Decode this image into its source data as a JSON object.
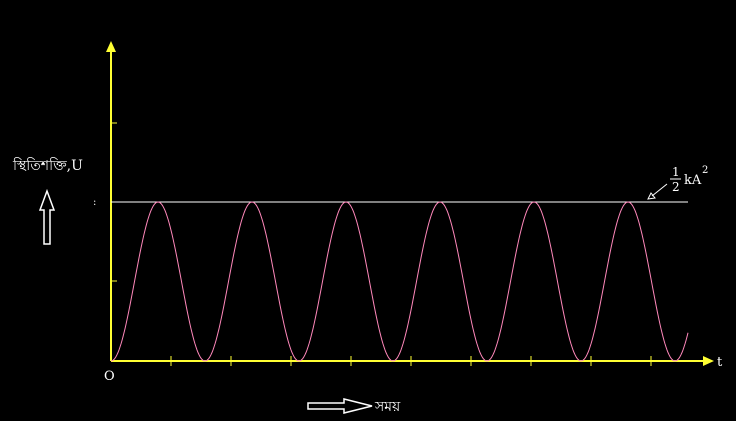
{
  "chart_data": {
    "type": "line",
    "ylabel": "স্থিতিশক্তি,U",
    "xlabel": "সময়",
    "x_axis_label": "t",
    "origin_label": "O",
    "max_line_label": {
      "numerator": "1",
      "denominator": "2",
      "text": "kA",
      "superscript": "2"
    },
    "periods_shown": 6.2,
    "ylim": [
      0,
      1
    ],
    "max_value": 1,
    "grid": false,
    "colors": {
      "background": "#000000",
      "axes": "#ffff33",
      "curve": "#ff88bb",
      "max_line": "#ffffff",
      "text": "#ffffff",
      "arrows": "#ffffff"
    }
  }
}
